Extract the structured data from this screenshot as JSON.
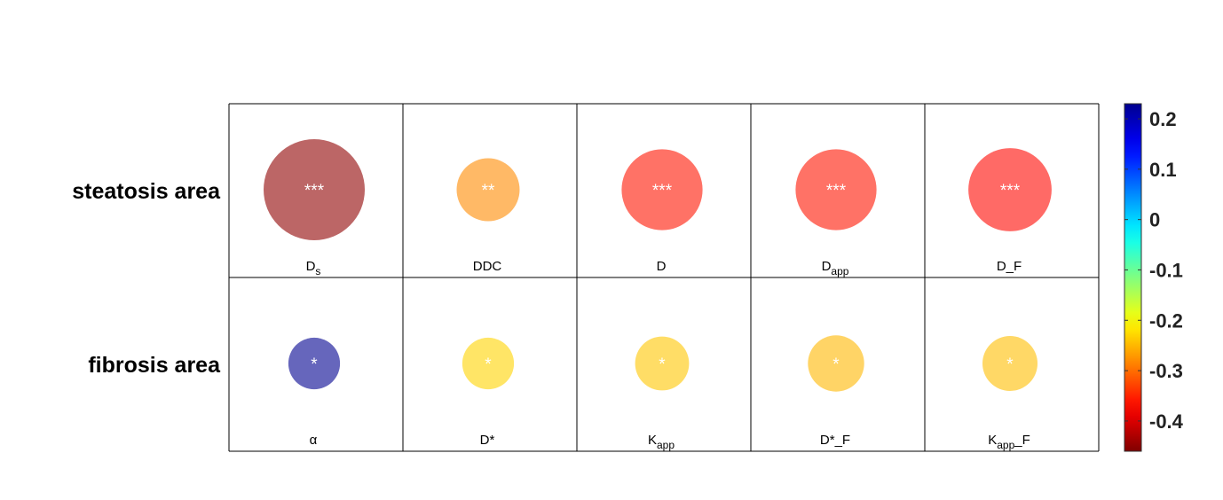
{
  "chart_data": {
    "type": "heatmap",
    "rows": [
      "steatosis area",
      "fibrosis area"
    ],
    "cells": [
      [
        {
          "label": "D",
          "subscript": "s",
          "suffix": "",
          "value": -0.45,
          "significance": "***"
        },
        {
          "label": "DDC",
          "subscript": "",
          "suffix": "",
          "value": -0.28,
          "significance": "**"
        },
        {
          "label": "D",
          "subscript": "",
          "suffix": "",
          "value": -0.36,
          "significance": "***"
        },
        {
          "label": "D",
          "subscript": "app",
          "suffix": "",
          "value": -0.36,
          "significance": "***"
        },
        {
          "label": "D_F",
          "subscript": "",
          "suffix": "",
          "value": -0.37,
          "significance": "***"
        }
      ],
      [
        {
          "label": "α",
          "subscript": "",
          "suffix": "",
          "value": 0.23,
          "significance": "*"
        },
        {
          "label": "D*",
          "subscript": "",
          "suffix": "",
          "value": -0.23,
          "significance": "*"
        },
        {
          "label": "K",
          "subscript": "app",
          "suffix": "",
          "value": -0.24,
          "significance": "*"
        },
        {
          "label": "D*_F",
          "subscript": "",
          "suffix": "",
          "value": -0.25,
          "significance": "*"
        },
        {
          "label": "K",
          "subscript": "app",
          "suffix": "_F",
          "value": -0.245,
          "significance": "*"
        }
      ]
    ],
    "colorbar": {
      "min": -0.46,
      "max": 0.23,
      "ticks": [
        0.2,
        0.1,
        0,
        -0.1,
        -0.2,
        -0.3,
        -0.4
      ],
      "tick_labels": [
        "0.2",
        "0.1",
        "0",
        "-0.1",
        "-0.2",
        "-0.3",
        "-0.4"
      ],
      "colormap": "jet"
    },
    "grid": true,
    "marker": "circle sized by |value|"
  }
}
